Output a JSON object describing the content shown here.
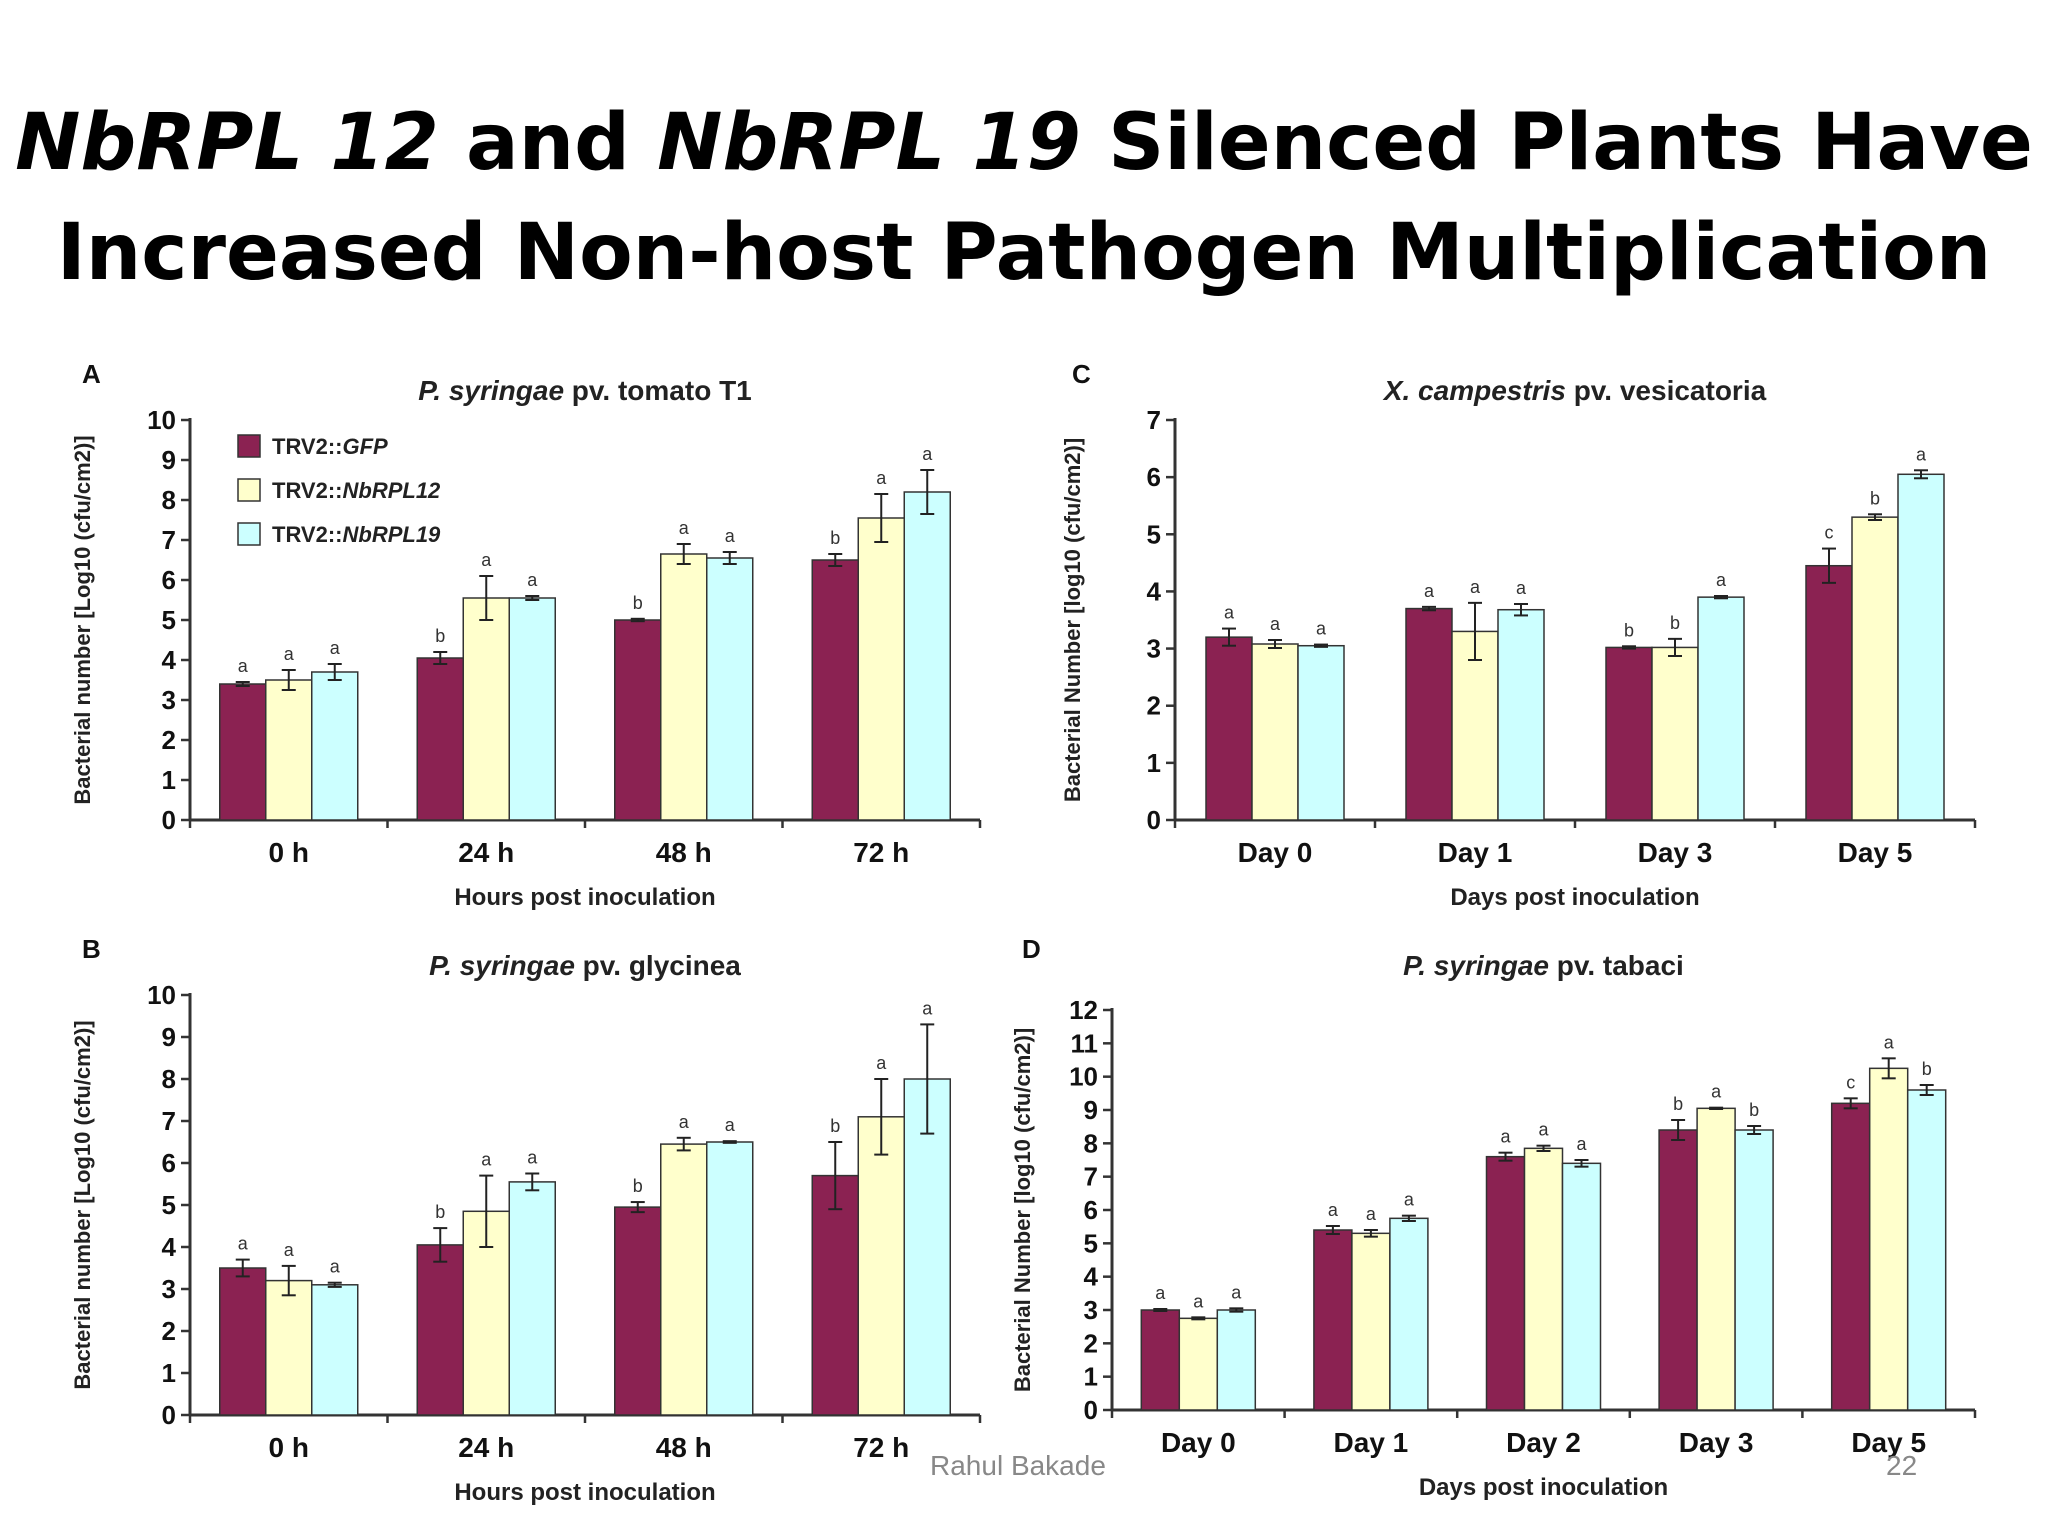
{
  "slide": {
    "title_line1_p1": "NbRPL 12",
    "title_line1_p2": " and ",
    "title_line1_p3": "NbRPL 19",
    "title_line1_p4": " Silenced Plants Have",
    "title_line2": "Increased Non-host Pathogen Multiplication",
    "author": "Rahul Bakade",
    "page_number": "22"
  },
  "colors": {
    "GFP": "#8b2252",
    "NbRPL12": "#ffffcc",
    "NbRPL19": "#ccffff"
  },
  "chart_data": [
    {
      "id": "A",
      "panel_label": "A",
      "type": "bar",
      "title": "P. syringae pv. tomato T1",
      "xlabel": "Hours post inoculation",
      "ylabel": "Bacterial number [Log10 (cfu/cm2)]",
      "ylim": [
        0,
        10
      ],
      "yticks": [
        0,
        1,
        2,
        3,
        4,
        5,
        6,
        7,
        8,
        9,
        10
      ],
      "categories": [
        "0 h",
        "24 h",
        "48 h",
        "72 h"
      ],
      "legend": [
        "TRV2::GFP",
        "TRV2::NbRPL12",
        "TRV2::NbRPL19"
      ],
      "series": [
        {
          "name": "TRV2::GFP",
          "values": [
            3.4,
            4.05,
            5.0,
            6.5
          ],
          "errors": [
            0.05,
            0.15,
            0.03,
            0.15
          ],
          "letters": [
            "a",
            "b",
            "b",
            "b"
          ]
        },
        {
          "name": "TRV2::NbRPL12",
          "values": [
            3.5,
            5.55,
            6.65,
            7.55
          ],
          "errors": [
            0.25,
            0.55,
            0.25,
            0.6
          ],
          "letters": [
            "a",
            "a",
            "a",
            "a"
          ]
        },
        {
          "name": "TRV2::NbRPL19",
          "values": [
            3.7,
            5.55,
            6.55,
            8.2
          ],
          "errors": [
            0.2,
            0.05,
            0.15,
            0.55
          ],
          "letters": [
            "a",
            "a",
            "a",
            "a"
          ]
        }
      ]
    },
    {
      "id": "C",
      "panel_label": "C",
      "type": "bar",
      "title": "X. campestris pv. vesicatoria",
      "xlabel": "Days post inoculation",
      "ylabel": "Bacterial Number [log10 (cfu/cm2)]",
      "ylim": [
        0,
        7
      ],
      "yticks": [
        0,
        1,
        2,
        3,
        4,
        5,
        6,
        7
      ],
      "categories": [
        "Day 0",
        "Day 1",
        "Day 3",
        "Day 5"
      ],
      "series": [
        {
          "name": "TRV2::GFP",
          "values": [
            3.2,
            3.7,
            3.02,
            4.45
          ],
          "errors": [
            0.15,
            0.03,
            0.02,
            0.3
          ],
          "letters": [
            "a",
            "a",
            "b",
            "c"
          ]
        },
        {
          "name": "TRV2::NbRPL12",
          "values": [
            3.08,
            3.3,
            3.02,
            5.3
          ],
          "errors": [
            0.07,
            0.5,
            0.15,
            0.05
          ],
          "letters": [
            "a",
            "a",
            "b",
            "b"
          ]
        },
        {
          "name": "TRV2::NbRPL19",
          "values": [
            3.05,
            3.68,
            3.9,
            6.05
          ],
          "errors": [
            0.02,
            0.1,
            0.02,
            0.07
          ],
          "letters": [
            "a",
            "a",
            "a",
            "a"
          ]
        }
      ]
    },
    {
      "id": "B",
      "panel_label": "B",
      "type": "bar",
      "title": "P. syringae pv. glycinea",
      "xlabel": "Hours post inoculation",
      "ylabel": "Bacterial number [Log10 (cfu/cm2)]",
      "ylim": [
        0,
        10
      ],
      "yticks": [
        0,
        1,
        2,
        3,
        4,
        5,
        6,
        7,
        8,
        9,
        10
      ],
      "categories": [
        "0 h",
        "24 h",
        "48 h",
        "72 h"
      ],
      "series": [
        {
          "name": "TRV2::GFP",
          "values": [
            3.5,
            4.05,
            4.95,
            5.7
          ],
          "errors": [
            0.2,
            0.4,
            0.12,
            0.8
          ],
          "letters": [
            "a",
            "b",
            "b",
            "b"
          ]
        },
        {
          "name": "TRV2::NbRPL12",
          "values": [
            3.2,
            4.85,
            6.45,
            7.1
          ],
          "errors": [
            0.35,
            0.85,
            0.15,
            0.9
          ],
          "letters": [
            "a",
            "a",
            "a",
            "a"
          ]
        },
        {
          "name": "TRV2::NbRPL19",
          "values": [
            3.1,
            5.55,
            6.5,
            8.0
          ],
          "errors": [
            0.05,
            0.2,
            0.02,
            1.3
          ],
          "letters": [
            "a",
            "a",
            "a",
            "a"
          ]
        }
      ]
    },
    {
      "id": "D",
      "panel_label": "D",
      "type": "bar",
      "title": "P. syringae pv. tabaci",
      "xlabel": "Days post inoculation",
      "ylabel": "Bacterial Number [log10 (cfu/cm2)]",
      "ylim": [
        0,
        12
      ],
      "yticks": [
        0,
        1,
        2,
        3,
        4,
        5,
        6,
        7,
        8,
        9,
        10,
        11,
        12
      ],
      "categories": [
        "Day 0",
        "Day 1",
        "Day 2",
        "Day 3",
        "Day 5"
      ],
      "series": [
        {
          "name": "TRV2::GFP",
          "values": [
            3.0,
            5.4,
            7.6,
            8.4,
            9.2
          ],
          "errors": [
            0.03,
            0.12,
            0.12,
            0.3,
            0.15
          ],
          "letters": [
            "a",
            "a",
            "a",
            "b",
            "c"
          ]
        },
        {
          "name": "TRV2::NbRPL12",
          "values": [
            2.75,
            5.3,
            7.85,
            9.05,
            10.25
          ],
          "errors": [
            0.03,
            0.1,
            0.08,
            0.02,
            0.3
          ],
          "letters": [
            "a",
            "a",
            "a",
            "a",
            "a"
          ]
        },
        {
          "name": "TRV2::NbRPL19",
          "values": [
            3.0,
            5.75,
            7.4,
            8.4,
            9.6
          ],
          "errors": [
            0.05,
            0.08,
            0.1,
            0.12,
            0.15
          ],
          "letters": [
            "a",
            "a",
            "a",
            "b",
            "b"
          ]
        }
      ]
    }
  ]
}
